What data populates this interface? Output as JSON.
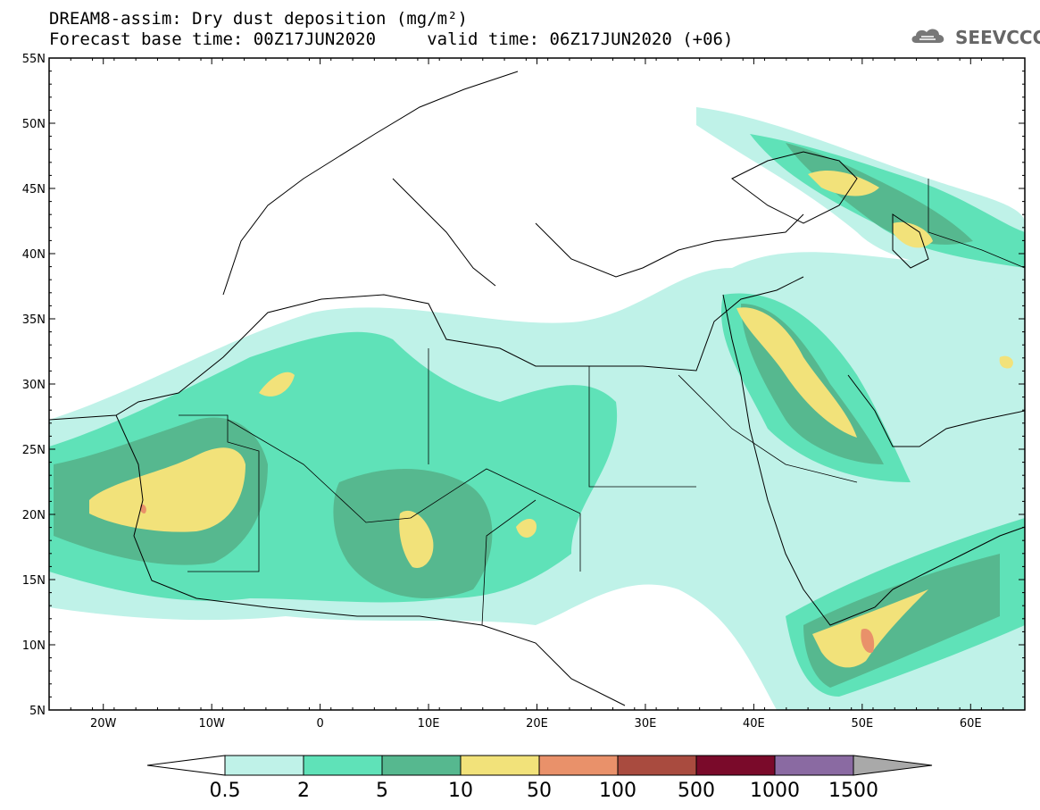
{
  "header": {
    "title_line1": "DREAM8-assim: Dry dust deposition (mg/m²)",
    "title_line2": "Forecast base time: 00Z17JUN2020     valid time: 06Z17JUN2020 (+06)"
  },
  "logo": {
    "text": "SEEVCCC",
    "icon": "cloud-logo-icon"
  },
  "map": {
    "region": {
      "lon_min": -25,
      "lon_max": 65,
      "lat_min": 5,
      "lat_max": 55
    },
    "lat_ticks": [
      "5N",
      "10N",
      "15N",
      "20N",
      "25N",
      "30N",
      "35N",
      "40N",
      "45N",
      "50N",
      "55N"
    ],
    "lon_ticks": [
      "20W",
      "10W",
      "0",
      "10E",
      "20E",
      "30E",
      "40E",
      "50E",
      "60E"
    ]
  },
  "colorbar": {
    "thresholds": [
      "0.5",
      "2",
      "5",
      "10",
      "50",
      "100",
      "500",
      "1000",
      "1500"
    ],
    "colors": [
      "#bff2e8",
      "#5fe2b8",
      "#56b88f",
      "#f2e27a",
      "#e9916a",
      "#a94b3f",
      "#7a0a2a",
      "#8a6aa2",
      "#a9a9a9"
    ]
  }
}
